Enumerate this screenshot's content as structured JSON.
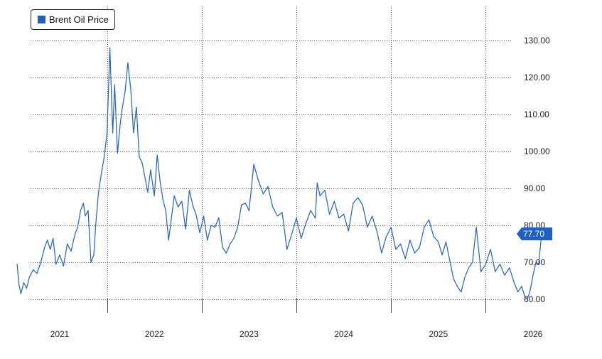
{
  "colors": {
    "series": "#1f5fc4",
    "tag": "#1f5fc4"
  },
  "legend": {
    "label": "Brent Oil Price"
  },
  "chart_data": {
    "type": "line",
    "title": "",
    "xlabel": "",
    "ylabel": "",
    "ylim": [
      58,
      133
    ],
    "y_ticks": [
      "130.00",
      "120.00",
      "110.00",
      "100.00",
      "90.00",
      "80.00",
      "70.00",
      "60.00"
    ],
    "y_tick_values": [
      130,
      120,
      110,
      100,
      90,
      80,
      70,
      60
    ],
    "x_ticks": [
      "2021",
      "2022",
      "2023",
      "2024",
      "2025",
      "2026"
    ],
    "x_tick_values": [
      2021.0,
      2022.0,
      2023.0,
      2024.0,
      2025.0,
      2026.0
    ],
    "x_range": [
      2020.55,
      2026.1
    ],
    "grid": true,
    "legend_position": "top-left",
    "last_value_label": "77.70",
    "series": [
      {
        "name": "Brent Oil Price",
        "x": [
          2020.55,
          2020.57,
          2020.59,
          2020.62,
          2020.65,
          2020.68,
          2020.72,
          2020.76,
          2020.8,
          2020.84,
          2020.87,
          2020.9,
          2020.93,
          2020.96,
          2021.0,
          2021.04,
          2021.08,
          2021.12,
          2021.16,
          2021.19,
          2021.22,
          2021.25,
          2021.27,
          2021.3,
          2021.33,
          2021.36,
          2021.38,
          2021.41,
          2021.44,
          2021.47,
          2021.5,
          2021.53,
          2021.56,
          2021.58,
          2021.61,
          2021.64,
          2021.66,
          2021.69,
          2021.72,
          2021.75,
          2021.78,
          2021.81,
          2021.84,
          2021.87,
          2021.9,
          2021.93,
          2021.96,
          2022.0,
          2022.03,
          2022.06,
          2022.09,
          2022.12,
          2022.15,
          2022.18,
          2022.21,
          2022.25,
          2022.29,
          2022.33,
          2022.37,
          2022.41,
          2022.44,
          2022.48,
          2022.52,
          2022.56,
          2022.6,
          2022.64,
          2022.68,
          2022.72,
          2022.76,
          2022.8,
          2022.84,
          2022.88,
          2022.92,
          2022.96,
          2023.0,
          2023.05,
          2023.1,
          2023.15,
          2023.2,
          2023.25,
          2023.3,
          2023.35,
          2023.4,
          2023.45,
          2023.5,
          2023.55,
          2023.6,
          2023.65,
          2023.7,
          2023.72,
          2023.75,
          2023.8,
          2023.85,
          2023.9,
          2023.95,
          2024.0,
          2024.05,
          2024.1,
          2024.15,
          2024.2,
          2024.25,
          2024.3,
          2024.35,
          2024.4,
          2024.45,
          2024.5,
          2024.55,
          2024.6,
          2024.65,
          2024.7,
          2024.75,
          2024.8,
          2024.85,
          2024.9,
          2024.95,
          2025.0,
          2025.04,
          2025.08,
          2025.12,
          2025.16,
          2025.2,
          2025.24,
          2025.28,
          2025.32,
          2025.36,
          2025.4,
          2025.45,
          2025.5,
          2025.55,
          2025.6,
          2025.65,
          2025.7,
          2025.75,
          2025.8,
          2025.84,
          2025.88,
          2025.91,
          2025.94,
          2025.97,
          2026.0,
          2026.03,
          2026.06,
          2026.09
        ],
        "values": [
          69.5,
          64.0,
          61.5,
          64.5,
          63.0,
          66.0,
          68.0,
          67.0,
          70.0,
          74.0,
          76.0,
          73.5,
          76.5,
          69.5,
          72.0,
          69.0,
          75.0,
          73.0,
          77.5,
          79.5,
          84.0,
          86.0,
          82.5,
          84.0,
          70.0,
          72.0,
          80.0,
          89.0,
          94.0,
          98.5,
          105.0,
          128.0,
          105.0,
          118.0,
          99.5,
          107.5,
          111.5,
          116.0,
          124.0,
          117.0,
          105.0,
          112.0,
          98.5,
          97.0,
          93.0,
          89.0,
          95.0,
          88.0,
          99.0,
          92.0,
          87.0,
          84.0,
          76.0,
          82.0,
          88.0,
          85.0,
          86.5,
          79.0,
          89.5,
          85.0,
          83.0,
          78.0,
          82.5,
          76.0,
          80.0,
          79.5,
          82.0,
          74.0,
          72.5,
          75.0,
          76.5,
          79.5,
          85.5,
          86.0,
          84.0,
          96.5,
          92.0,
          88.5,
          90.5,
          85.0,
          82.5,
          83.5,
          73.5,
          77.5,
          82.0,
          76.5,
          80.5,
          84.0,
          82.0,
          91.5,
          88.0,
          89.5,
          83.0,
          86.5,
          82.0,
          83.0,
          78.5,
          86.0,
          87.5,
          85.5,
          79.5,
          82.5,
          78.5,
          72.5,
          77.0,
          79.5,
          73.5,
          75.0,
          71.0,
          76.0,
          72.5,
          74.0,
          79.5,
          81.5,
          77.0,
          75.5,
          72.0,
          75.5,
          70.5,
          65.5,
          63.5,
          62.0,
          66.0,
          68.5,
          70.0,
          79.5,
          67.5,
          69.5,
          73.5,
          67.5,
          69.5,
          66.5,
          68.5,
          64.5,
          62.0,
          63.5,
          61.0,
          60.0,
          62.5,
          66.5,
          70.0,
          69.5,
          77.7
        ]
      }
    ]
  }
}
